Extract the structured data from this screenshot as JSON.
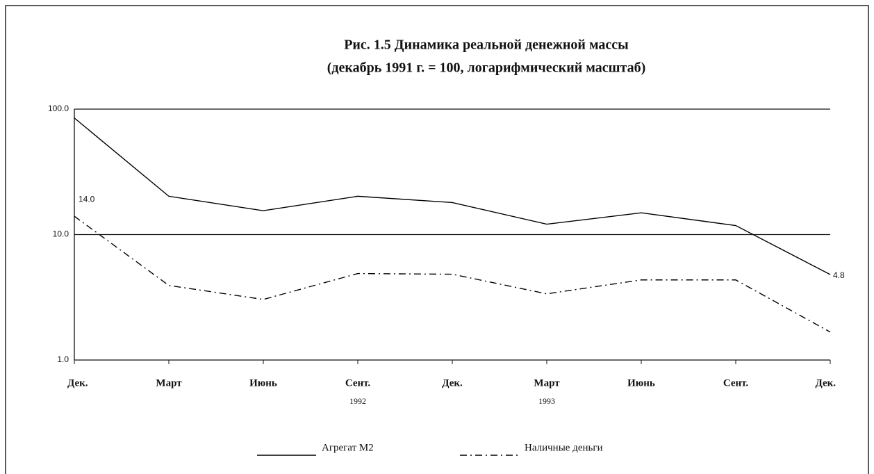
{
  "chart_data": {
    "type": "line",
    "title": "Рис. 1.5  Динамика реальной денежной массы",
    "subtitle": "(декабрь 1991 г. =  100, логарифмический масштаб)",
    "categories": [
      "Дек.",
      "Март",
      "Июнь",
      "Сент.",
      "Дек.",
      "Март",
      "Июнь",
      "Сент.",
      "Дек."
    ],
    "category_years": [
      null,
      null,
      null,
      "1992",
      null,
      "1993",
      null,
      null,
      null
    ],
    "log_scale": true,
    "grid": true,
    "ylim": [
      1,
      100
    ],
    "yticks": [
      {
        "value": 1,
        "label": "1.0"
      },
      {
        "value": 10,
        "label": "10.0"
      },
      {
        "value": 100,
        "label": "100.0"
      }
    ],
    "series": [
      {
        "name": "Агрегат M2",
        "color": "#000000",
        "dash": "solid",
        "values": [
          85,
          20.2,
          15.5,
          20.2,
          18.0,
          12.1,
          14.9,
          11.8,
          4.8
        ],
        "value_labels": [
          null,
          null,
          null,
          null,
          null,
          null,
          null,
          null,
          "4.8"
        ]
      },
      {
        "name": "Наличные деньги",
        "color": "#000000",
        "dash": "dashdot",
        "values": [
          14.0,
          3.93,
          3.04,
          4.89,
          4.83,
          3.37,
          4.35,
          4.35,
          1.67
        ],
        "value_labels": [
          "14.0",
          null,
          null,
          null,
          null,
          null,
          null,
          null,
          null
        ]
      }
    ]
  }
}
